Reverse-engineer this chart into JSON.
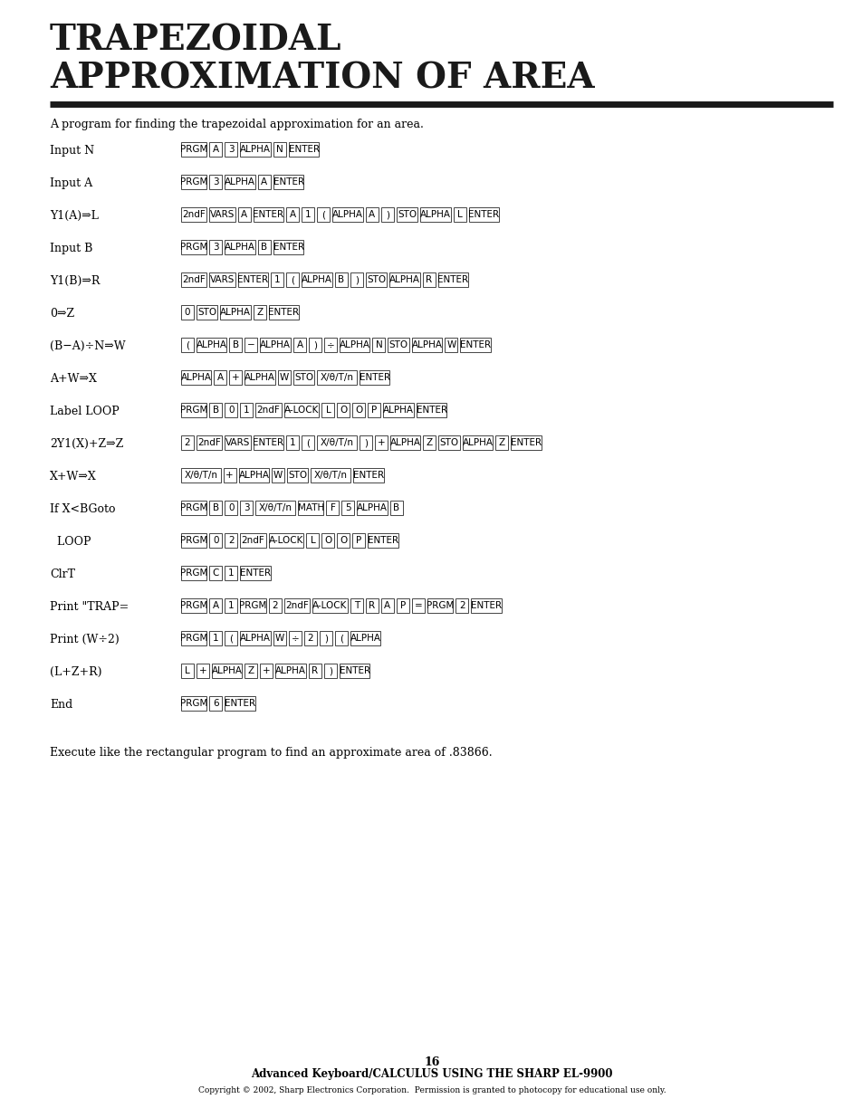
{
  "title_line1": "TRAPEZOIDAL",
  "title_line2": "APPROXIMATION OF AREA",
  "bg_color": "#ffffff",
  "text_color": "#000000",
  "title_color": "#1a1a1a",
  "intro_text": "A program for finding the trapezoidal approximation for an area.",
  "rows": [
    {
      "label": "Input N",
      "keys": [
        "PRGM",
        "A",
        "3",
        "ALPHA",
        "N",
        "ENTER"
      ]
    },
    {
      "label": "Input A",
      "keys": [
        "PRGM",
        "3",
        "ALPHA",
        "A",
        "ENTER"
      ]
    },
    {
      "label": "Y1(A)⇒L",
      "keys": [
        "2ndF",
        "VARS",
        "A",
        "ENTER",
        "A",
        "1",
        "(",
        "ALPHA",
        "A",
        ")",
        "STO",
        "ALPHA",
        "L",
        "ENTER"
      ]
    },
    {
      "label": "Input B",
      "keys": [
        "PRGM",
        "3",
        "ALPHA",
        "B",
        "ENTER"
      ]
    },
    {
      "label": "Y1(B)⇒R",
      "keys": [
        "2ndF",
        "VARS",
        "ENTER",
        "1",
        "(",
        "ALPHA",
        "B",
        ")",
        "STO",
        "ALPHA",
        "R",
        "ENTER"
      ]
    },
    {
      "label": "0⇒Z",
      "keys": [
        "0",
        "STO",
        "ALPHA",
        "Z",
        "ENTER"
      ]
    },
    {
      "label": "(B−A)÷N⇒W",
      "keys": [
        "(",
        "ALPHA",
        "B",
        "−",
        "ALPHA",
        "A",
        ")",
        "÷",
        "ALPHA",
        "N",
        "STO",
        "ALPHA",
        "W",
        "ENTER"
      ]
    },
    {
      "label": "A+W⇒X",
      "keys": [
        "ALPHA",
        "A",
        "+",
        "ALPHA",
        "W",
        "STO",
        "X/θ/T/n",
        "ENTER"
      ]
    },
    {
      "label": "Label LOOP",
      "keys": [
        "PRGM",
        "B",
        "0",
        "1",
        "2ndF",
        "A-LOCK",
        "L",
        "O",
        "O",
        "P",
        "ALPHA",
        "ENTER"
      ]
    },
    {
      "label": "2Y1(X)+Z⇒Z",
      "keys": [
        "2",
        "2ndF",
        "VARS",
        "ENTER",
        "1",
        "(",
        "X/θ/T/n",
        ")",
        "+",
        "ALPHA",
        "Z",
        "STO",
        "ALPHA",
        "Z",
        "ENTER"
      ]
    },
    {
      "label": "X+W⇒X",
      "keys": [
        "X/θ/T/n",
        "+",
        "ALPHA",
        "W",
        "STO",
        "X/θ/T/n",
        "ENTER"
      ]
    },
    {
      "label": "If X<BGoto",
      "keys": [
        "PRGM",
        "B",
        "0",
        "3",
        "X/θ/T/n",
        "MATH",
        "F",
        "5",
        "ALPHA",
        "B"
      ]
    },
    {
      "label": "  LOOP",
      "keys": [
        "PRGM",
        "0",
        "2",
        "2ndF",
        "A-LOCK",
        "L",
        "O",
        "O",
        "P",
        "ENTER"
      ]
    },
    {
      "label": "ClrT",
      "keys": [
        "PRGM",
        "C",
        "1",
        "ENTER"
      ]
    },
    {
      "label": "Print \"TRAP=",
      "keys": [
        "PRGM",
        "A",
        "1",
        "PRGM",
        "2",
        "2ndF",
        "A-LOCK",
        "T",
        "R",
        "A",
        "P",
        "=",
        "PRGM",
        "2",
        "ENTER"
      ]
    },
    {
      "label": "Print (W÷2)",
      "keys": [
        "PRGM",
        "1",
        "(",
        "ALPHA",
        "W",
        "÷",
        "2",
        ")",
        "(",
        "ALPHA"
      ]
    },
    {
      "label": "(L+Z+R)",
      "keys": [
        "L",
        "+",
        "ALPHA",
        "Z",
        "+",
        "ALPHA",
        "R",
        ")",
        "ENTER"
      ]
    },
    {
      "label": "End",
      "keys": [
        "PRGM",
        "6",
        "ENTER"
      ]
    }
  ],
  "footer_text": "Execute like the rectangular program to find an approximate area of .83866.",
  "page_number": "16",
  "footer_title": "Advanced Keyboard/CALCULUS USING THE SHARP EL-9900",
  "footer_copyright": "Copyright © 2002, Sharp Electronics Corporation.  Permission is granted to photocopy for educational use only."
}
